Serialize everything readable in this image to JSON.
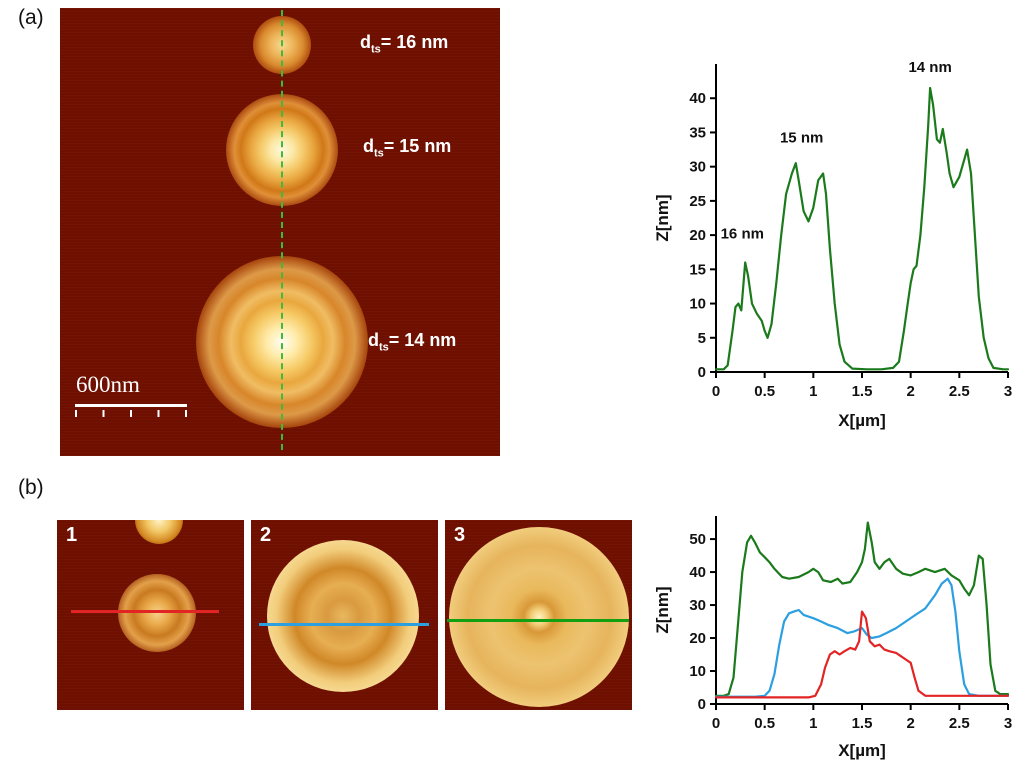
{
  "figure": {
    "panel_a_label": "(a)",
    "panel_b_label": "(b)"
  },
  "panel_a": {
    "scale_bar_text": "600nm",
    "dot_labels": [
      {
        "base": "d",
        "sub": "ts",
        "value": "= 16 nm"
      },
      {
        "base": "d",
        "sub": "ts",
        "value": "= 15 nm"
      },
      {
        "base": "d",
        "sub": "ts",
        "value": "= 14 nm"
      }
    ]
  },
  "panel_b": {
    "image_labels": [
      "1",
      "2",
      "3"
    ]
  },
  "colors": {
    "afm_background": "#6e0f00",
    "profile_green": "#1b7a1b",
    "scan_red": "#e32424",
    "scan_blue": "#2b9fe0",
    "scan_green": "#12a012",
    "dashed_marker_green": "#3dbb3d"
  },
  "chart_data": [
    {
      "type": "line",
      "title": "",
      "xlabel": "X[µm]",
      "ylabel": "Z[nm]",
      "xlim": [
        0,
        3
      ],
      "ylim": [
        0,
        45
      ],
      "xticks": [
        0,
        0.5,
        1,
        1.5,
        2,
        2.5,
        3
      ],
      "yticks": [
        0,
        5,
        10,
        15,
        20,
        25,
        30,
        35,
        40
      ],
      "grid": false,
      "legend": "none",
      "annotations": [
        {
          "text": "16 nm",
          "x": 0.27,
          "y": 19.5
        },
        {
          "text": "15 nm",
          "x": 0.88,
          "y": 33.5
        },
        {
          "text": "14 nm",
          "x": 2.2,
          "y": 43.8
        }
      ],
      "series": [
        {
          "name": "height profile along dashed line",
          "color": "#1b7a1b",
          "points": [
            [
              0,
              0.4
            ],
            [
              0.08,
              0.4
            ],
            [
              0.12,
              1
            ],
            [
              0.17,
              6
            ],
            [
              0.2,
              9.5
            ],
            [
              0.23,
              10
            ],
            [
              0.26,
              9
            ],
            [
              0.3,
              16
            ],
            [
              0.33,
              14
            ],
            [
              0.37,
              10
            ],
            [
              0.42,
              8.5
            ],
            [
              0.47,
              7.5
            ],
            [
              0.5,
              6
            ],
            [
              0.53,
              5
            ],
            [
              0.57,
              7
            ],
            [
              0.62,
              13
            ],
            [
              0.67,
              20
            ],
            [
              0.72,
              26
            ],
            [
              0.78,
              29
            ],
            [
              0.82,
              30.5
            ],
            [
              0.85,
              28
            ],
            [
              0.9,
              23.5
            ],
            [
              0.95,
              22
            ],
            [
              1.0,
              24
            ],
            [
              1.05,
              28
            ],
            [
              1.1,
              29
            ],
            [
              1.13,
              26
            ],
            [
              1.17,
              18
            ],
            [
              1.22,
              10
            ],
            [
              1.27,
              4
            ],
            [
              1.32,
              1.5
            ],
            [
              1.4,
              0.5
            ],
            [
              1.55,
              0.4
            ],
            [
              1.7,
              0.4
            ],
            [
              1.82,
              0.6
            ],
            [
              1.88,
              1.5
            ],
            [
              1.93,
              6
            ],
            [
              1.97,
              10
            ],
            [
              2.0,
              13
            ],
            [
              2.03,
              15
            ],
            [
              2.06,
              15.5
            ],
            [
              2.1,
              20
            ],
            [
              2.14,
              27
            ],
            [
              2.18,
              36
            ],
            [
              2.2,
              41.5
            ],
            [
              2.23,
              39
            ],
            [
              2.27,
              34
            ],
            [
              2.3,
              33.5
            ],
            [
              2.33,
              35.5
            ],
            [
              2.37,
              32
            ],
            [
              2.4,
              29
            ],
            [
              2.44,
              27
            ],
            [
              2.5,
              28.5
            ],
            [
              2.55,
              31
            ],
            [
              2.58,
              32.5
            ],
            [
              2.62,
              29
            ],
            [
              2.66,
              20
            ],
            [
              2.7,
              11
            ],
            [
              2.75,
              5
            ],
            [
              2.8,
              2
            ],
            [
              2.85,
              0.6
            ],
            [
              2.95,
              0.4
            ],
            [
              3.0,
              0.4
            ]
          ]
        }
      ]
    },
    {
      "type": "line",
      "title": "",
      "xlabel": "X[µm]",
      "ylabel": "Z[nm]",
      "xlim": [
        0,
        3
      ],
      "ylim": [
        0,
        57
      ],
      "xticks": [
        0,
        0.5,
        1,
        1.5,
        2,
        2.5,
        3
      ],
      "yticks": [
        0,
        10,
        20,
        30,
        40,
        50
      ],
      "grid": false,
      "legend": "none",
      "annotations": [],
      "series": [
        {
          "name": "profile 3 (green)",
          "color": "#1b7a1b",
          "points": [
            [
              0,
              2.5
            ],
            [
              0.08,
              2.5
            ],
            [
              0.13,
              3
            ],
            [
              0.18,
              8
            ],
            [
              0.22,
              22
            ],
            [
              0.27,
              40
            ],
            [
              0.32,
              49
            ],
            [
              0.36,
              51
            ],
            [
              0.4,
              49
            ],
            [
              0.45,
              46
            ],
            [
              0.5,
              44.5
            ],
            [
              0.55,
              43
            ],
            [
              0.6,
              41
            ],
            [
              0.68,
              38.5
            ],
            [
              0.75,
              38
            ],
            [
              0.85,
              38.5
            ],
            [
              0.95,
              40
            ],
            [
              1.0,
              41
            ],
            [
              1.05,
              40
            ],
            [
              1.1,
              37.5
            ],
            [
              1.18,
              37
            ],
            [
              1.25,
              38
            ],
            [
              1.3,
              36.5
            ],
            [
              1.38,
              37
            ],
            [
              1.45,
              40
            ],
            [
              1.5,
              43
            ],
            [
              1.53,
              47
            ],
            [
              1.56,
              55
            ],
            [
              1.6,
              49
            ],
            [
              1.63,
              43
            ],
            [
              1.68,
              41
            ],
            [
              1.73,
              43
            ],
            [
              1.78,
              44
            ],
            [
              1.85,
              41
            ],
            [
              1.92,
              39.5
            ],
            [
              2.0,
              39
            ],
            [
              2.08,
              40
            ],
            [
              2.15,
              41
            ],
            [
              2.25,
              40
            ],
            [
              2.35,
              41
            ],
            [
              2.42,
              39
            ],
            [
              2.5,
              37.5
            ],
            [
              2.55,
              35
            ],
            [
              2.6,
              33
            ],
            [
              2.65,
              36
            ],
            [
              2.7,
              45
            ],
            [
              2.74,
              44
            ],
            [
              2.78,
              30
            ],
            [
              2.82,
              12
            ],
            [
              2.87,
              4
            ],
            [
              2.92,
              3
            ],
            [
              3.0,
              3
            ]
          ]
        },
        {
          "name": "profile 2 (blue)",
          "color": "#2b9fe0",
          "points": [
            [
              0,
              2.2
            ],
            [
              0.4,
              2.2
            ],
            [
              0.5,
              2.5
            ],
            [
              0.55,
              4
            ],
            [
              0.6,
              9
            ],
            [
              0.65,
              18
            ],
            [
              0.7,
              25
            ],
            [
              0.75,
              27.5
            ],
            [
              0.8,
              28
            ],
            [
              0.85,
              28.5
            ],
            [
              0.9,
              27
            ],
            [
              1.0,
              26
            ],
            [
              1.08,
              25
            ],
            [
              1.15,
              24
            ],
            [
              1.25,
              23
            ],
            [
              1.35,
              21.5
            ],
            [
              1.42,
              22
            ],
            [
              1.5,
              23
            ],
            [
              1.55,
              21
            ],
            [
              1.6,
              20
            ],
            [
              1.68,
              20.5
            ],
            [
              1.75,
              21.5
            ],
            [
              1.85,
              23
            ],
            [
              1.95,
              25
            ],
            [
              2.05,
              27
            ],
            [
              2.15,
              29
            ],
            [
              2.25,
              33
            ],
            [
              2.32,
              36.5
            ],
            [
              2.38,
              38
            ],
            [
              2.42,
              36
            ],
            [
              2.46,
              28
            ],
            [
              2.5,
              16
            ],
            [
              2.55,
              6
            ],
            [
              2.6,
              3
            ],
            [
              2.7,
              2.5
            ],
            [
              3.0,
              2.5
            ]
          ]
        },
        {
          "name": "profile 1 (red)",
          "color": "#e32424",
          "points": [
            [
              0,
              2
            ],
            [
              0.95,
              2
            ],
            [
              1.02,
              2.5
            ],
            [
              1.08,
              6
            ],
            [
              1.12,
              11
            ],
            [
              1.17,
              15
            ],
            [
              1.22,
              16
            ],
            [
              1.27,
              15
            ],
            [
              1.32,
              16
            ],
            [
              1.38,
              17
            ],
            [
              1.43,
              16.5
            ],
            [
              1.47,
              19
            ],
            [
              1.5,
              28
            ],
            [
              1.54,
              26
            ],
            [
              1.58,
              19
            ],
            [
              1.63,
              17.5
            ],
            [
              1.68,
              18
            ],
            [
              1.73,
              16.5
            ],
            [
              1.78,
              16
            ],
            [
              1.85,
              15.5
            ],
            [
              1.9,
              14.5
            ],
            [
              1.95,
              13.5
            ],
            [
              2.0,
              12.5
            ],
            [
              2.04,
              8
            ],
            [
              2.08,
              4
            ],
            [
              2.15,
              2.5
            ],
            [
              2.3,
              2.5
            ],
            [
              3.0,
              2.5
            ]
          ]
        }
      ]
    }
  ]
}
